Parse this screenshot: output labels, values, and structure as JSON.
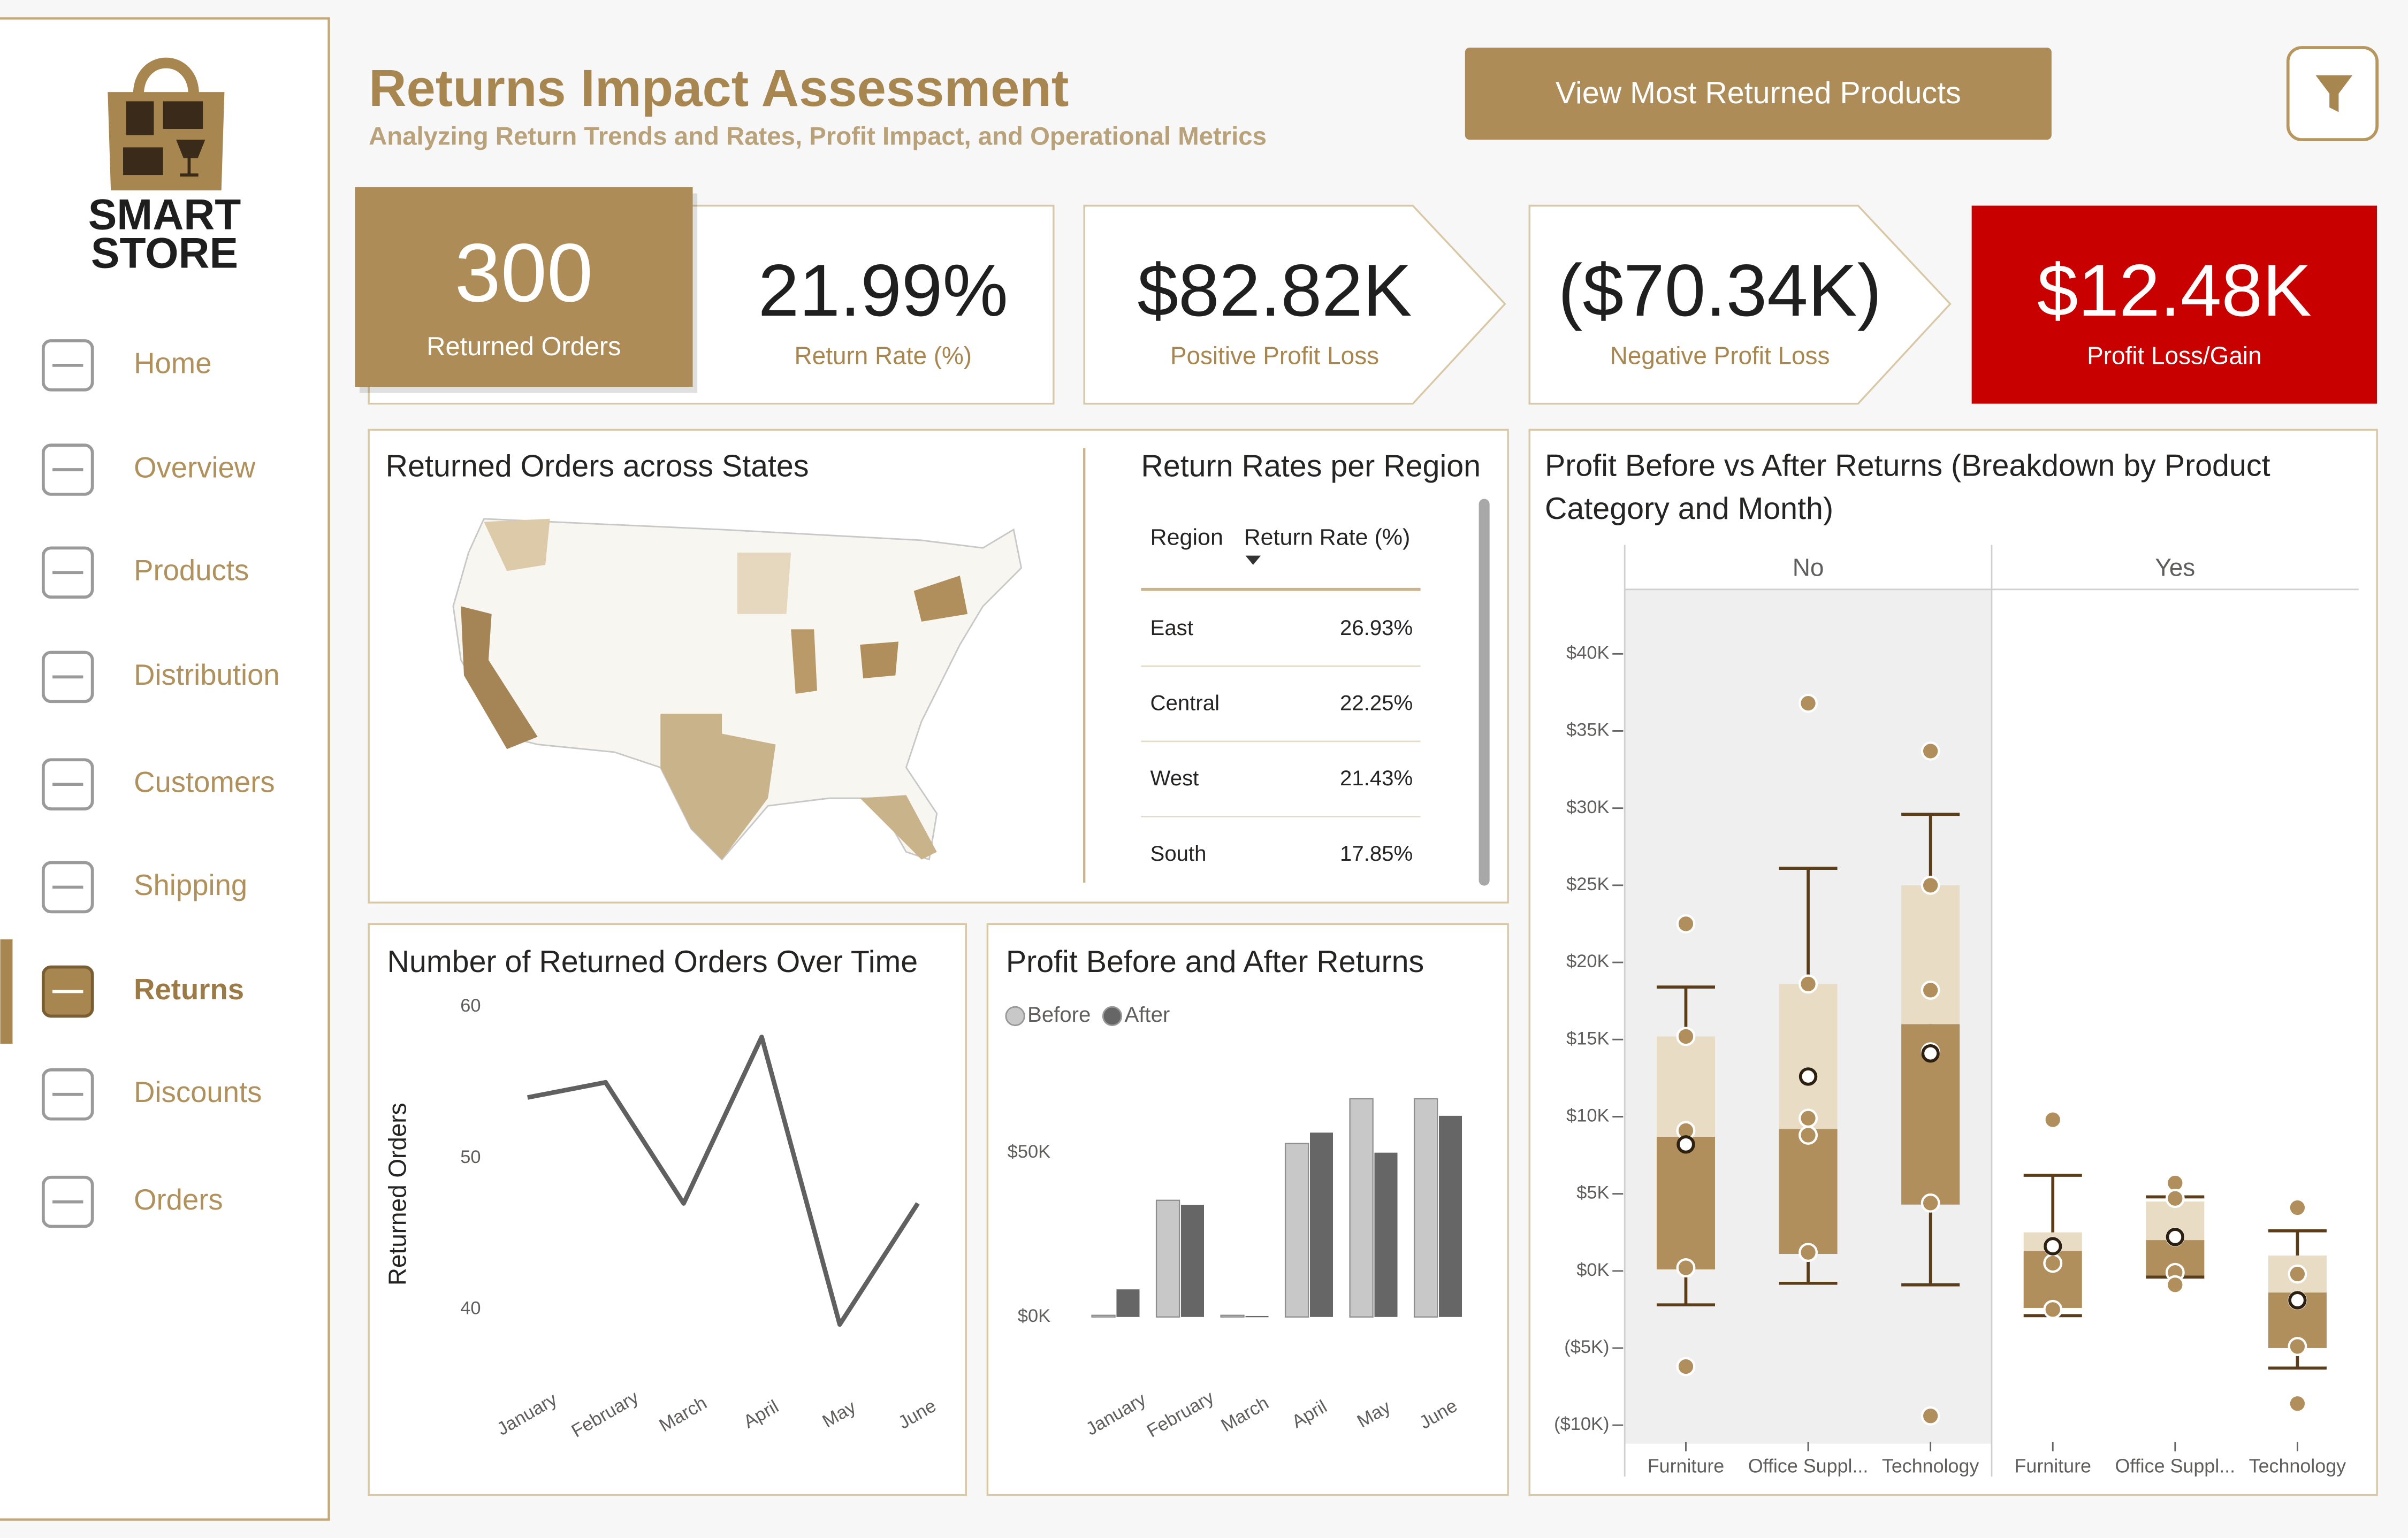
{
  "logo": {
    "line1": "SMART",
    "line2": "STORE"
  },
  "nav": {
    "items": [
      "Home",
      "Overview",
      "Products",
      "Distribution",
      "Customers",
      "Shipping",
      "Returns",
      "Discounts",
      "Orders"
    ],
    "active": "Returns"
  },
  "header": {
    "title": "Returns Impact Assessment",
    "subtitle": "Analyzing Return Trends and Rates, Profit Impact, and Operational Metrics",
    "button": "View Most Returned Products"
  },
  "kpis": [
    {
      "value": "300",
      "label": "Returned Orders"
    },
    {
      "value": "21.99%",
      "label": "Return Rate (%)"
    },
    {
      "value": "$82.82K",
      "label": "Positive Profit Loss"
    },
    {
      "value": "($70.34K)",
      "label": "Negative Profit Loss"
    },
    {
      "value": "$12.48K",
      "label": "Profit Loss/Gain"
    }
  ],
  "map": {
    "title": "Returned Orders across States"
  },
  "table": {
    "title": "Return Rates per Region",
    "columns": [
      "Region",
      "Return Rate (%)"
    ],
    "rows": [
      [
        "East",
        "26.93%"
      ],
      [
        "Central",
        "22.25%"
      ],
      [
        "West",
        "21.43%"
      ],
      [
        "South",
        "17.85%"
      ]
    ]
  },
  "chart_data": [
    {
      "type": "line",
      "title": "Number of Returned Orders Over Time",
      "y_label": "Returned Orders",
      "categories": [
        "January",
        "February",
        "March",
        "April",
        "May",
        "June"
      ],
      "values": [
        54,
        55,
        47,
        58,
        39,
        47
      ],
      "color": "#606060",
      "ylim": [
        37,
        61
      ],
      "yticks": [
        40,
        50,
        60
      ]
    },
    {
      "type": "bar",
      "title": "Profit Before and After Returns",
      "categories": [
        "January",
        "February",
        "March",
        "April",
        "May",
        "June"
      ],
      "series": [
        {
          "name": "Before",
          "color": "#c8c8c8",
          "values": [
            500,
            35500,
            500,
            52800,
            66400,
            66400
          ]
        },
        {
          "name": "After",
          "color": "#666666",
          "values": [
            8400,
            34100,
            300,
            56100,
            50000,
            61200
          ]
        }
      ],
      "ylim": [
        0,
        78000
      ],
      "yticks": [
        {
          "value": 0,
          "label": "$0K"
        },
        {
          "value": 50000,
          "label": "$50K"
        }
      ],
      "legend": "top-left"
    },
    {
      "type": "box",
      "title": "Profit Before vs After Returns (Breakdown by Product Category and Month)",
      "facets": [
        {
          "name": "No",
          "categories": [
            "Furniture",
            "Office Suppl...",
            "Technology"
          ],
          "boxes": [
            {
              "whisker_low": -2200,
              "q1": 100,
              "median": 8700,
              "q3": 15200,
              "whisker_high": 18400,
              "mean": 8200,
              "points": [
                22500,
                15200,
                9100,
                200,
                -6200
              ]
            },
            {
              "whisker_low": -800,
              "q1": 1100,
              "median": 9200,
              "q3": 18600,
              "whisker_high": 26100,
              "mean": 12600,
              "points": [
                36800,
                18600,
                9900,
                8800,
                1200
              ]
            },
            {
              "whisker_low": -900,
              "q1": 4300,
              "median": 16000,
              "q3": 25000,
              "whisker_high": 29600,
              "mean": 14100,
              "points": [
                33700,
                25000,
                18200,
                14200,
                4400,
                -9400
              ]
            }
          ]
        },
        {
          "name": "Yes",
          "categories": [
            "Furniture",
            "Office Suppl...",
            "Technology"
          ],
          "boxes": [
            {
              "whisker_low": -2900,
              "q1": -2400,
              "median": 1300,
              "q3": 2500,
              "whisker_high": 6200,
              "mean": 1600,
              "points": [
                9800,
                1600,
                500,
                -2500
              ]
            },
            {
              "whisker_low": -400,
              "q1": -300,
              "median": 2000,
              "q3": 4500,
              "whisker_high": 4800,
              "mean": 2200,
              "points": [
                5700,
                4700,
                2200,
                -100,
                -900
              ]
            },
            {
              "whisker_low": -6300,
              "q1": -5000,
              "median": -1400,
              "q3": 1000,
              "whisker_high": 2600,
              "mean": -1900,
              "points": [
                4100,
                -200,
                -1900,
                -4900,
                -8600
              ]
            }
          ]
        }
      ],
      "ylim": [
        -11000,
        44000
      ],
      "yticks": [
        {
          "value": -10000,
          "label": "($10K)"
        },
        {
          "value": -5000,
          "label": "($5K)"
        },
        {
          "value": 0,
          "label": "$0K"
        },
        {
          "value": 5000,
          "label": "$5K"
        },
        {
          "value": 10000,
          "label": "$10K"
        },
        {
          "value": 15000,
          "label": "$15K"
        },
        {
          "value": 20000,
          "label": "$20K"
        },
        {
          "value": 25000,
          "label": "$25K"
        },
        {
          "value": 30000,
          "label": "$30K"
        },
        {
          "value": 35000,
          "label": "$35K"
        },
        {
          "value": 40000,
          "label": "$40K"
        }
      ],
      "colors": {
        "upper": "#e8dcc5",
        "lower": "#b08f5c",
        "whisker": "#5c3d1a",
        "points": "#b08f5c"
      }
    }
  ]
}
